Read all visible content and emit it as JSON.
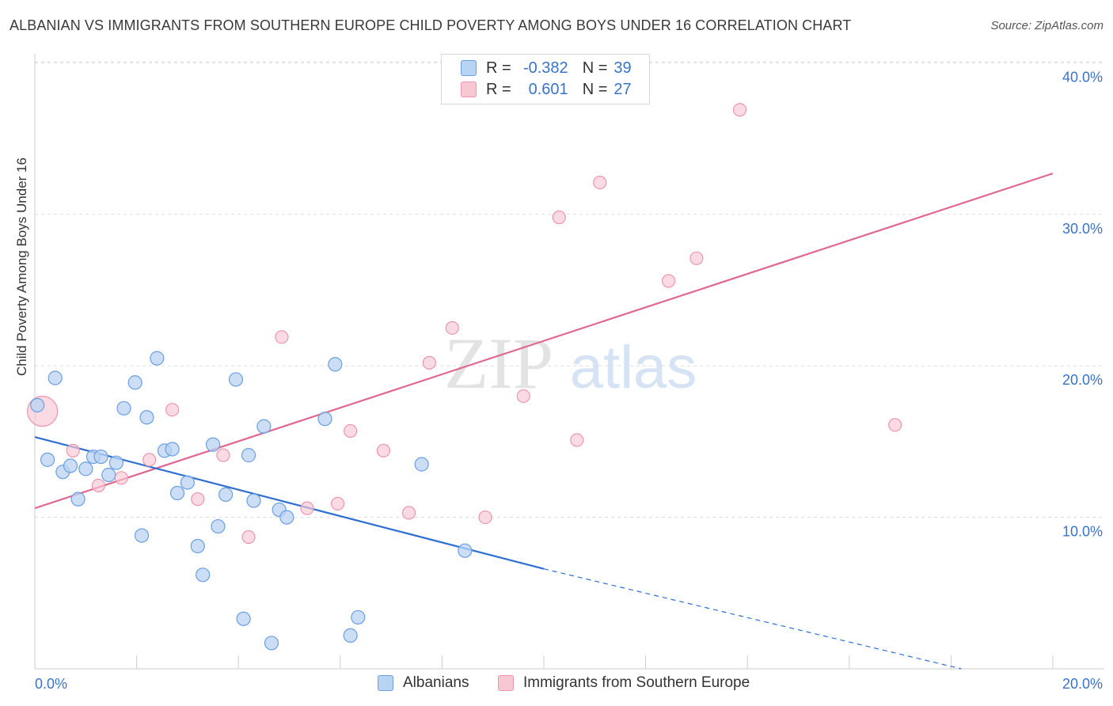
{
  "header": {
    "title": "ALBANIAN VS IMMIGRANTS FROM SOUTHERN EUROPE CHILD POVERTY AMONG BOYS UNDER 16 CORRELATION CHART",
    "source": "Source: ZipAtlas.com"
  },
  "watermark": {
    "zip": "ZIP",
    "atlas": "atlas"
  },
  "legend": {
    "albanians": {
      "r_label": "R =",
      "r_value": "-0.382",
      "n_label": "N =",
      "n_value": "39"
    },
    "immigrants": {
      "r_label": "R =",
      "r_value": "0.601",
      "n_label": "N =",
      "n_value": "27"
    }
  },
  "colors": {
    "blue_fill": "#b9d3f3",
    "blue_stroke": "#6c9fe0",
    "blue_line": "#2f6fd0",
    "pink_fill": "#f8c7d4",
    "pink_stroke": "#ec96ad",
    "pink_line": "#e0688f",
    "axis_text": "#3b73c8"
  },
  "chart_data": {
    "type": "scatter",
    "title": "ALBANIAN VS IMMIGRANTS FROM SOUTHERN EUROPE CHILD POVERTY AMONG BOYS UNDER 16 CORRELATION CHART",
    "xlabel": "",
    "ylabel": "Child Poverty Among Boys Under 16",
    "xlim": [
      0,
      20
    ],
    "ylim": [
      0,
      40
    ],
    "x_tick_labels": [
      "0.0%",
      "20.0%"
    ],
    "y_ticks": [
      10,
      20,
      30,
      40
    ],
    "y_tick_labels": [
      "10.0%",
      "20.0%",
      "30.0%",
      "40.0%"
    ],
    "grid": true,
    "legend_position": "top-center",
    "series": [
      {
        "name": "Albanians",
        "r": -0.382,
        "n": 39,
        "points": [
          {
            "x": 0.05,
            "y": 17.4
          },
          {
            "x": 0.4,
            "y": 19.2
          },
          {
            "x": 0.25,
            "y": 13.8
          },
          {
            "x": 0.55,
            "y": 13.0
          },
          {
            "x": 0.7,
            "y": 13.4
          },
          {
            "x": 0.85,
            "y": 11.2
          },
          {
            "x": 1.0,
            "y": 13.2
          },
          {
            "x": 1.15,
            "y": 14.0
          },
          {
            "x": 1.3,
            "y": 14.0
          },
          {
            "x": 1.45,
            "y": 12.8
          },
          {
            "x": 1.6,
            "y": 13.6
          },
          {
            "x": 1.75,
            "y": 17.2
          },
          {
            "x": 1.97,
            "y": 18.9
          },
          {
            "x": 2.1,
            "y": 8.8
          },
          {
            "x": 2.2,
            "y": 16.6
          },
          {
            "x": 2.4,
            "y": 20.5
          },
          {
            "x": 2.55,
            "y": 14.4
          },
          {
            "x": 2.7,
            "y": 14.5
          },
          {
            "x": 2.8,
            "y": 11.6
          },
          {
            "x": 3.0,
            "y": 12.3
          },
          {
            "x": 3.2,
            "y": 8.1
          },
          {
            "x": 3.3,
            "y": 6.2
          },
          {
            "x": 3.5,
            "y": 14.8
          },
          {
            "x": 3.6,
            "y": 9.4
          },
          {
            "x": 3.75,
            "y": 11.5
          },
          {
            "x": 3.95,
            "y": 19.1
          },
          {
            "x": 4.1,
            "y": 3.3
          },
          {
            "x": 4.2,
            "y": 14.1
          },
          {
            "x": 4.3,
            "y": 11.1
          },
          {
            "x": 4.5,
            "y": 16.0
          },
          {
            "x": 4.65,
            "y": 1.7
          },
          {
            "x": 4.8,
            "y": 10.5
          },
          {
            "x": 4.95,
            "y": 10.0
          },
          {
            "x": 5.7,
            "y": 16.5
          },
          {
            "x": 5.9,
            "y": 20.1
          },
          {
            "x": 6.2,
            "y": 2.2
          },
          {
            "x": 6.35,
            "y": 3.4
          },
          {
            "x": 7.6,
            "y": 13.5
          },
          {
            "x": 8.45,
            "y": 7.8
          }
        ],
        "trend": {
          "x0": 0,
          "y0": 15.3,
          "x1": 10.0,
          "y1": 6.6,
          "dashed_to_x": 18.2,
          "dashed_to_y": 0.0
        }
      },
      {
        "name": "Immigrants from Southern Europe",
        "r": 0.601,
        "n": 27,
        "points": [
          {
            "x": 0.15,
            "y": 17.0,
            "big": true
          },
          {
            "x": 0.75,
            "y": 14.4
          },
          {
            "x": 1.25,
            "y": 12.1
          },
          {
            "x": 1.7,
            "y": 12.6
          },
          {
            "x": 2.25,
            "y": 13.8
          },
          {
            "x": 2.7,
            "y": 17.1
          },
          {
            "x": 3.2,
            "y": 11.2
          },
          {
            "x": 3.7,
            "y": 14.1
          },
          {
            "x": 4.2,
            "y": 8.7
          },
          {
            "x": 4.85,
            "y": 21.9
          },
          {
            "x": 5.35,
            "y": 10.6
          },
          {
            "x": 5.95,
            "y": 10.9
          },
          {
            "x": 6.2,
            "y": 15.7
          },
          {
            "x": 6.85,
            "y": 14.4
          },
          {
            "x": 7.35,
            "y": 10.3
          },
          {
            "x": 7.75,
            "y": 20.2
          },
          {
            "x": 8.2,
            "y": 22.5
          },
          {
            "x": 8.85,
            "y": 10.0
          },
          {
            "x": 9.6,
            "y": 18.0
          },
          {
            "x": 10.3,
            "y": 29.8
          },
          {
            "x": 10.65,
            "y": 15.1
          },
          {
            "x": 11.1,
            "y": 32.1
          },
          {
            "x": 11.9,
            "y": 38.5
          },
          {
            "x": 12.45,
            "y": 25.6
          },
          {
            "x": 13.0,
            "y": 27.1
          },
          {
            "x": 13.85,
            "y": 36.9
          },
          {
            "x": 16.9,
            "y": 16.1
          }
        ],
        "trend": {
          "x0": 0,
          "y0": 10.6,
          "x1": 20.0,
          "y1": 32.7
        }
      }
    ]
  },
  "bottom_legend": {
    "albanians_label": "Albanians",
    "immigrants_label": "Immigrants from Southern Europe"
  }
}
